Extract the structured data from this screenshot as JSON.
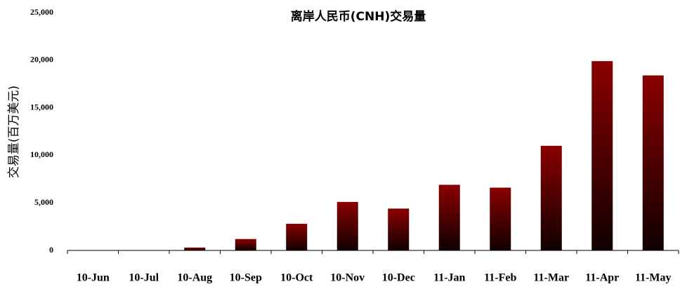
{
  "chart_data": {
    "type": "bar",
    "title": "离岸人民币(CNH)交易量",
    "y_label": "交易量(百万美元)",
    "categories": [
      "10-Jun",
      "10-Jul",
      "10-Aug",
      "10-Sep",
      "10-Oct",
      "10-Nov",
      "10-Dec",
      "11-Jan",
      "11-Feb",
      "11-Mar",
      "11-Apr",
      "11-May"
    ],
    "values": [
      0,
      0,
      300,
      1200,
      2800,
      5100,
      4400,
      6900,
      6600,
      11000,
      19900,
      18400
    ],
    "color": "#8b0000",
    "ylim": [
      0,
      25000
    ],
    "yticks": [
      0,
      {
        "value": 5000,
        "label": "5,000"
      },
      {
        "value": 10000,
        "label": "10,000"
      },
      {
        "value": 15000,
        "label": "15,000"
      },
      {
        "value": 20000,
        "label": "20,000"
      },
      {
        "value": 25000,
        "label": "25,000"
      }
    ],
    "grid": false
  }
}
